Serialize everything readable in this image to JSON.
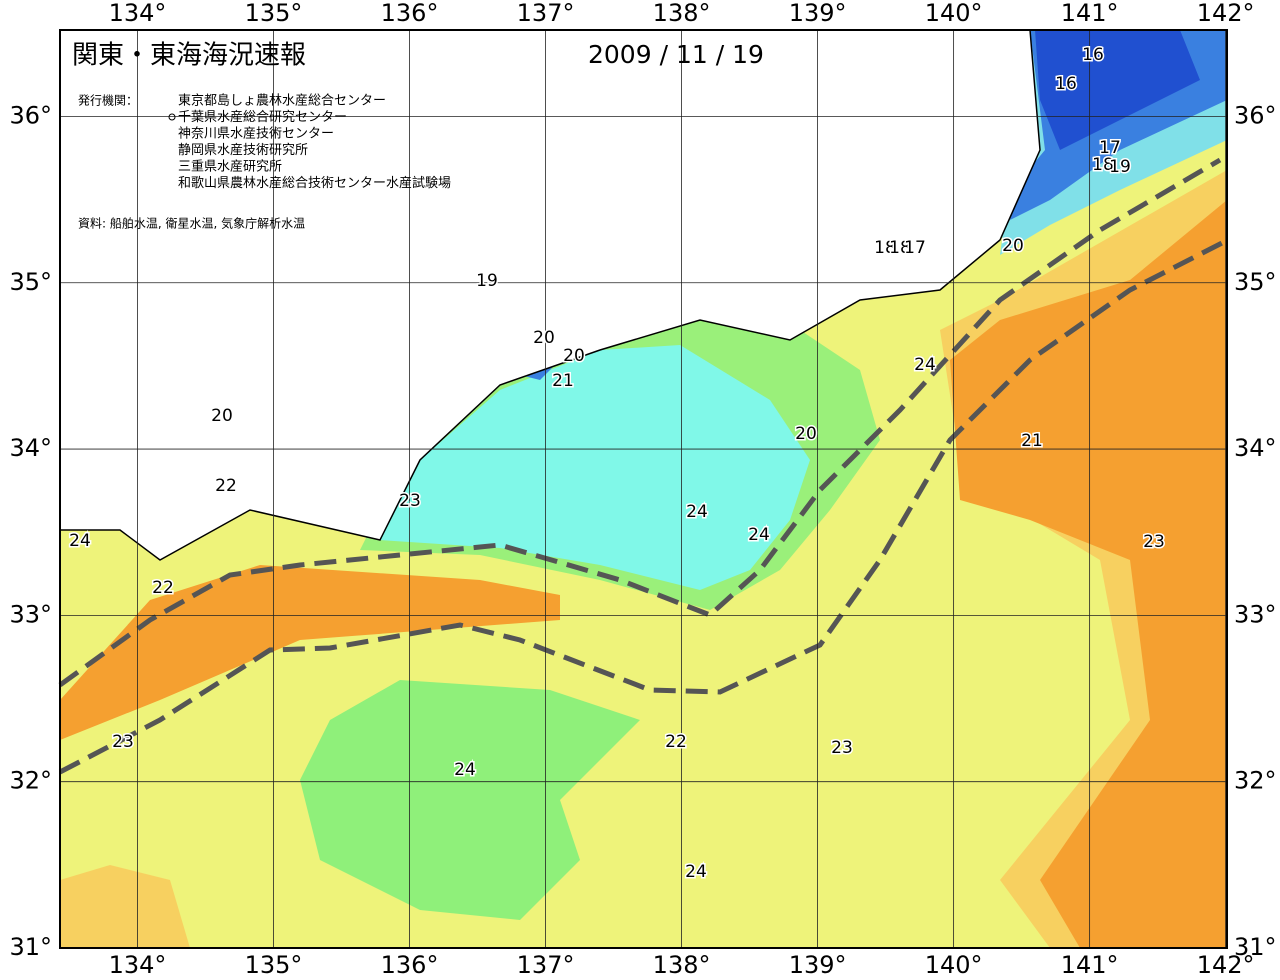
{
  "map": {
    "title": "関東・東海海況速報",
    "date": "2009 / 11 / 19",
    "publisher_label": "発行機関：",
    "publishers": [
      "東京都島しょ農林水産総合センター",
      "千葉県水産総合研究センター",
      "神奈川県水産技術センター",
      "静岡県水産技術研究所",
      "三重県水産研究所",
      "和歌山県農林水産総合技術センター水産試験場"
    ],
    "source": "資料: 船舶水温, 衛星水温, 気象庁解析水温",
    "lonlim": [
      133.43,
      142.01
    ],
    "latlim": [
      31,
      36.52
    ],
    "lon_ticks": [
      {
        "value": 134,
        "label": "134°"
      },
      {
        "value": 135,
        "label": "135°"
      },
      {
        "value": 136,
        "label": "136°"
      },
      {
        "value": 137,
        "label": "137°"
      },
      {
        "value": 138,
        "label": "138°"
      },
      {
        "value": 139,
        "label": "139°"
      },
      {
        "value": 140,
        "label": "140°"
      },
      {
        "value": 141,
        "label": "141°"
      },
      {
        "value": 142,
        "label": "142°"
      }
    ],
    "lat_ticks": [
      {
        "value": 31,
        "label": "31°"
      },
      {
        "value": 32,
        "label": "32°"
      },
      {
        "value": 33,
        "label": "33°"
      },
      {
        "value": 34,
        "label": "34°"
      },
      {
        "value": 35,
        "label": "35°"
      },
      {
        "value": 36,
        "label": "36°"
      }
    ],
    "contour_labels": [
      16,
      16,
      17,
      18,
      19,
      20,
      18,
      18,
      17,
      19,
      20,
      20,
      21,
      20,
      22,
      23,
      24,
      22,
      24,
      20,
      21,
      24,
      24,
      23,
      23,
      22,
      23,
      24,
      24
    ]
  }
}
